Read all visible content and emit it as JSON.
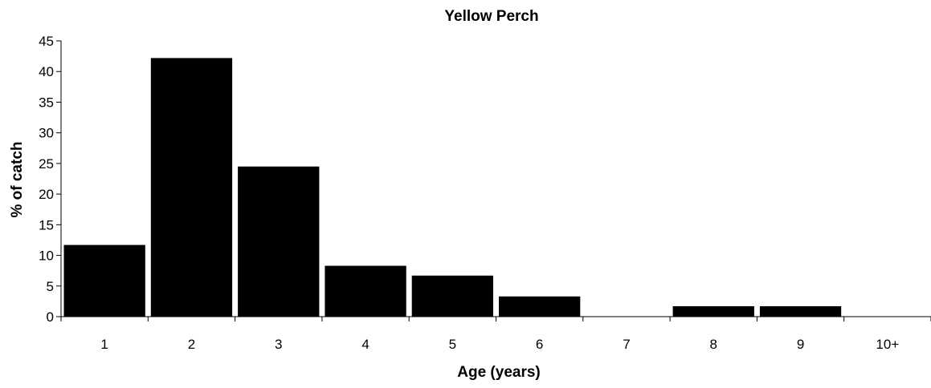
{
  "chart_data": {
    "type": "bar",
    "title": "Yellow Perch",
    "xlabel": "Age (years)",
    "ylabel": "% of catch",
    "categories": [
      "1",
      "2",
      "3",
      "4",
      "5",
      "6",
      "7",
      "8",
      "9",
      "10+"
    ],
    "values": [
      11.7,
      42.2,
      24.5,
      8.3,
      6.7,
      3.3,
      0,
      1.7,
      1.7,
      0
    ],
    "ylim": [
      0,
      45
    ],
    "yticks": [
      "0",
      "5",
      "10",
      "15",
      "20",
      "25",
      "30",
      "35",
      "40",
      "45"
    ],
    "grid": false,
    "legend": "none",
    "bar_color": "#000000"
  }
}
